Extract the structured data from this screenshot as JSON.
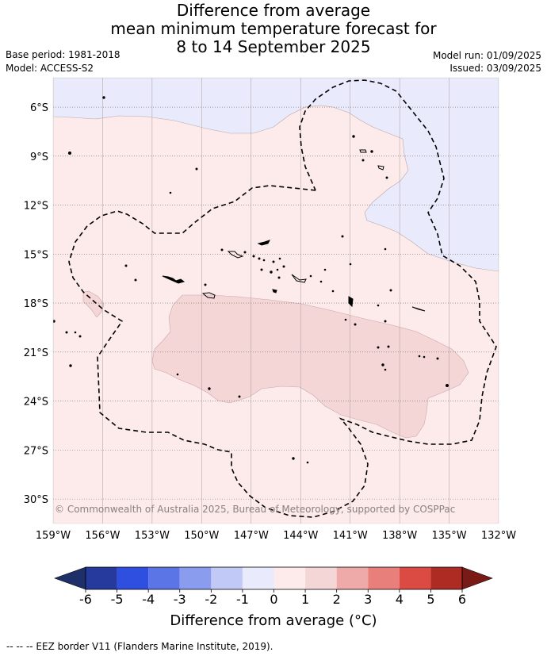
{
  "title": {
    "line1": "Difference from average",
    "line2": "mean minimum temperature forecast for",
    "line3": "8 to 14 September 2025"
  },
  "meta": {
    "base_period": "Base period: 1981-2018",
    "model": "Model: ACCESS-S2",
    "model_run": "Model run: 01/09/2025",
    "issued": "Issued: 03/09/2025"
  },
  "map": {
    "lon_range": [
      -159,
      -132
    ],
    "lat_range": [
      -31.5,
      -4.2
    ],
    "x_ticks": [
      "159°W",
      "156°W",
      "153°W",
      "150°W",
      "147°W",
      "144°W",
      "141°W",
      "138°W",
      "135°W",
      "132°W"
    ],
    "y_ticks": [
      "6°S",
      "9°S",
      "12°S",
      "15°S",
      "18°S",
      "21°S",
      "24°S",
      "27°S",
      "30°S"
    ],
    "copyright": "© Commonwealth of Australia 2025, Bureau of Meteorology, supported by COSPPac",
    "gridlines": "dotted",
    "region_colors": {
      "minus_1_to_0": "#e9ebfd",
      "0_to_1": "#fcebea",
      "1_to_2": "#f5d6d6"
    },
    "eez_border_style": "dashed"
  },
  "colorbar": {
    "title": "Difference from average (°C)",
    "labels": [
      "-6",
      "-5",
      "-4",
      "-3",
      "-2",
      "-1",
      "0",
      "1",
      "2",
      "3",
      "4",
      "5",
      "6"
    ],
    "colors": [
      "#263a9e",
      "#2f4fe0",
      "#5b74e6",
      "#8a9cee",
      "#c1c9f7",
      "#e9ebfd",
      "#fcebea",
      "#f5d6d6",
      "#eeaaa8",
      "#e87f7a",
      "#db4a43",
      "#ae2b23"
    ],
    "under_color": "#1f2f6a",
    "over_color": "#7a1a17"
  },
  "footer": "--  --  -- EEZ border V11 (Flanders Marine Institute, 2019)."
}
